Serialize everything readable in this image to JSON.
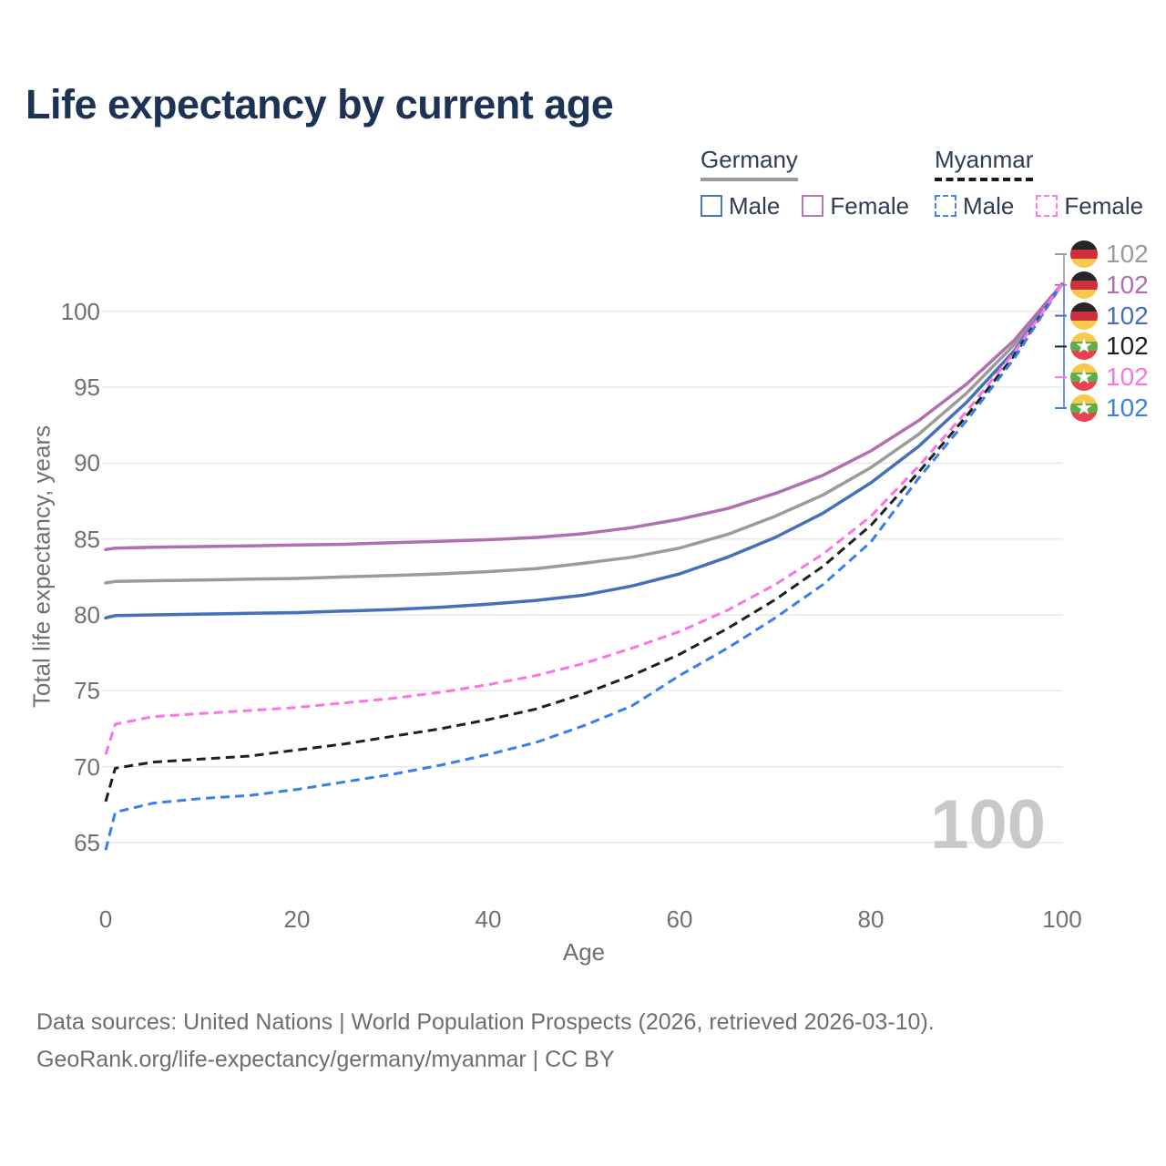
{
  "header": {
    "title": "Life expectancy by current age"
  },
  "legend": {
    "groups": [
      {
        "label": "Germany",
        "line_style": "solid",
        "line_color": "#9b9b9b",
        "items": [
          {
            "label": "Male",
            "color": "#4a78bc",
            "dashed": false
          },
          {
            "label": "Female",
            "color": "#b478b4",
            "dashed": false
          }
        ]
      },
      {
        "label": "Myanmar",
        "line_style": "dashed",
        "line_color": "#1a1a1a",
        "items": [
          {
            "label": "Male",
            "color": "#4083f0",
            "dashed": true
          },
          {
            "label": "Female",
            "color": "#ff7ce8",
            "dashed": true
          }
        ]
      }
    ]
  },
  "chart_data": {
    "type": "line",
    "title": "Life expectancy by current age",
    "xlabel": "Age",
    "ylabel": "Total life expectancy, years",
    "xlim": [
      0,
      100
    ],
    "ylim": [
      63,
      103
    ],
    "x_ticks": [
      0,
      20,
      40,
      60,
      80,
      100
    ],
    "y_ticks": [
      65,
      70,
      75,
      80,
      85,
      90,
      95,
      100
    ],
    "grid": "horizontal",
    "legend_position": "top-right",
    "age_indicator": "100",
    "x": [
      0,
      1,
      5,
      10,
      15,
      20,
      25,
      30,
      35,
      40,
      45,
      50,
      55,
      60,
      65,
      70,
      75,
      80,
      85,
      90,
      95,
      100
    ],
    "series": [
      {
        "name": "Germany",
        "sex": "all",
        "color": "#9b9b9b",
        "dashed": false,
        "values": [
          82.1,
          82.2,
          82.25,
          82.3,
          82.35,
          82.4,
          82.5,
          82.6,
          82.7,
          82.85,
          83.05,
          83.4,
          83.8,
          84.4,
          85.3,
          86.5,
          87.9,
          89.7,
          91.9,
          94.6,
          97.8,
          101.8
        ]
      },
      {
        "name": "Germany",
        "sex": "male",
        "color": "#4470b8",
        "dashed": false,
        "values": [
          79.8,
          79.95,
          80.0,
          80.05,
          80.1,
          80.15,
          80.25,
          80.35,
          80.5,
          80.7,
          80.95,
          81.3,
          81.9,
          82.7,
          83.8,
          85.1,
          86.7,
          88.7,
          91.1,
          94.0,
          97.4,
          101.8
        ]
      },
      {
        "name": "Germany",
        "sex": "female",
        "color": "#b06fb0",
        "dashed": false,
        "values": [
          84.3,
          84.4,
          84.45,
          84.5,
          84.55,
          84.6,
          84.65,
          84.75,
          84.85,
          84.95,
          85.1,
          85.35,
          85.75,
          86.3,
          87.0,
          88.0,
          89.2,
          90.8,
          92.8,
          95.2,
          98.1,
          101.8
        ]
      },
      {
        "name": "Myanmar",
        "sex": "all",
        "color": "#1f1f1f",
        "dashed": true,
        "values": [
          67.7,
          69.9,
          70.3,
          70.5,
          70.7,
          71.1,
          71.5,
          72.0,
          72.5,
          73.1,
          73.8,
          74.8,
          76.0,
          77.4,
          79.1,
          81.0,
          83.2,
          85.9,
          89.4,
          93.1,
          97.1,
          101.8
        ]
      },
      {
        "name": "Myanmar",
        "sex": "male",
        "color": "#3a7ee8",
        "dashed": true,
        "values": [
          64.5,
          67.0,
          67.6,
          67.9,
          68.1,
          68.5,
          69.0,
          69.5,
          70.1,
          70.8,
          71.6,
          72.7,
          74.0,
          76.0,
          77.8,
          79.8,
          82.0,
          84.8,
          89.0,
          92.8,
          96.9,
          101.8
        ]
      },
      {
        "name": "Myanmar",
        "sex": "female",
        "color": "#fb74e4",
        "dashed": true,
        "values": [
          70.8,
          72.8,
          73.3,
          73.5,
          73.7,
          73.9,
          74.2,
          74.5,
          74.9,
          75.4,
          76.0,
          76.8,
          77.8,
          78.9,
          80.3,
          82.0,
          84.0,
          86.5,
          89.8,
          93.4,
          97.3,
          101.8
        ]
      }
    ]
  },
  "value_labels": [
    {
      "country": "germany",
      "value": "102",
      "color": "#9b9b9b"
    },
    {
      "country": "germany",
      "value": "102",
      "color": "#b06fb0"
    },
    {
      "country": "germany",
      "value": "102",
      "color": "#4470b8"
    },
    {
      "country": "myanmar",
      "value": "102",
      "color": "#1f1f1f"
    },
    {
      "country": "myanmar",
      "value": "102",
      "color": "#fb74e4"
    },
    {
      "country": "myanmar",
      "value": "102",
      "color": "#3a7ee8"
    }
  ],
  "flags": {
    "germany": [
      "#262626",
      "#cf2e3c",
      "#f7c94d"
    ],
    "myanmar": [
      "#f7c94d",
      "#5fae4e",
      "#e8414f"
    ],
    "myanmar_star": "#ffffff"
  },
  "footer": {
    "line1": "Data sources: United Nations | World Population Prospects (2026, retrieved 2026-03-10).",
    "line2": "GeoRank.org/life-expectancy/germany/myanmar | CC BY"
  }
}
